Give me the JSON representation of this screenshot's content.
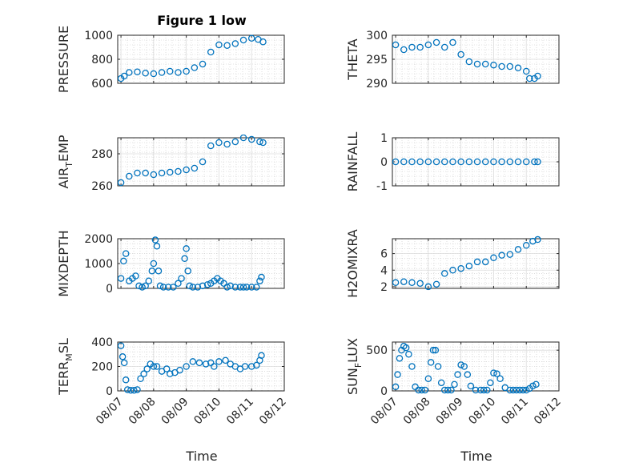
{
  "figure_title": "Figure 1 low",
  "xlabel": "Time",
  "x_ticks": [
    "08/07",
    "08/08",
    "08/09",
    "08/10",
    "08/11",
    "08/12"
  ],
  "chart_data": [
    {
      "type": "scatter",
      "id": "pressure",
      "ylabel_main": "PRESSURE",
      "ylabel_sub": "",
      "ylabel_tail": "",
      "ylim": [
        600,
        1000
      ],
      "yticks": [
        600,
        800,
        1000
      ],
      "grid": true,
      "x": [
        0.0,
        0.1,
        0.25,
        0.5,
        0.75,
        1.0,
        1.25,
        1.5,
        1.75,
        2.0,
        2.25,
        2.5,
        2.75,
        3.0,
        3.25,
        3.5,
        3.75,
        4.0,
        4.2,
        4.35
      ],
      "y": [
        640,
        660,
        690,
        695,
        685,
        680,
        690,
        700,
        690,
        700,
        730,
        760,
        860,
        920,
        915,
        930,
        960,
        975,
        965,
        945
      ]
    },
    {
      "type": "scatter",
      "id": "theta",
      "ylabel_main": "THETA",
      "ylabel_sub": "",
      "ylabel_tail": "",
      "ylim": [
        290,
        300
      ],
      "yticks": [
        290,
        295,
        300
      ],
      "grid": true,
      "x": [
        0.0,
        0.25,
        0.5,
        0.75,
        1.0,
        1.25,
        1.5,
        1.75,
        2.0,
        2.25,
        2.5,
        2.75,
        3.0,
        3.25,
        3.5,
        3.75,
        4.0,
        4.1,
        4.25,
        4.35
      ],
      "y": [
        298.0,
        297.0,
        297.5,
        297.5,
        298.0,
        298.5,
        297.5,
        298.5,
        296.0,
        294.5,
        294.0,
        294.0,
        293.8,
        293.5,
        293.5,
        293.2,
        292.5,
        291.0,
        291.0,
        291.5
      ]
    },
    {
      "type": "scatter",
      "id": "air-temp",
      "ylabel_main": "AIR",
      "ylabel_sub": "T",
      "ylabel_tail": "EMP",
      "ylim": [
        260,
        290
      ],
      "yticks": [
        260,
        280
      ],
      "grid": true,
      "x": [
        0.0,
        0.25,
        0.5,
        0.75,
        1.0,
        1.25,
        1.5,
        1.75,
        2.0,
        2.25,
        2.5,
        2.75,
        3.0,
        3.25,
        3.5,
        3.75,
        4.0,
        4.25,
        4.35
      ],
      "y": [
        262,
        266,
        268,
        268,
        267,
        268,
        268.5,
        269,
        270,
        271,
        275,
        285,
        287,
        286,
        287.5,
        290,
        289,
        287.5,
        287
      ]
    },
    {
      "type": "scatter",
      "id": "rainfall",
      "ylabel_main": "RAINFALL",
      "ylabel_sub": "",
      "ylabel_tail": "",
      "ylim": [
        -1,
        1
      ],
      "yticks": [
        -1,
        0,
        1
      ],
      "grid": true,
      "x": [
        0.0,
        0.25,
        0.5,
        0.75,
        1.0,
        1.25,
        1.5,
        1.75,
        2.0,
        2.25,
        2.5,
        2.75,
        3.0,
        3.25,
        3.5,
        3.75,
        4.0,
        4.25,
        4.35
      ],
      "y": [
        0,
        0,
        0,
        0,
        0,
        0,
        0,
        0,
        0,
        0,
        0,
        0,
        0,
        0,
        0,
        0,
        0,
        0,
        0
      ]
    },
    {
      "type": "scatter",
      "id": "mixdepth",
      "ylabel_main": "MIXDEPTH",
      "ylabel_sub": "",
      "ylabel_tail": "",
      "ylim": [
        0,
        2000
      ],
      "yticks": [
        0,
        1000,
        2000
      ],
      "grid": true,
      "x": [
        0.0,
        0.08,
        0.15,
        0.25,
        0.35,
        0.45,
        0.55,
        0.65,
        0.75,
        0.85,
        0.95,
        1.0,
        1.05,
        1.1,
        1.15,
        1.2,
        1.3,
        1.45,
        1.6,
        1.75,
        1.85,
        1.95,
        2.0,
        2.05,
        2.1,
        2.2,
        2.35,
        2.5,
        2.65,
        2.75,
        2.85,
        2.95,
        3.05,
        3.15,
        3.25,
        3.35,
        3.5,
        3.65,
        3.75,
        3.85,
        4.0,
        4.15,
        4.25,
        4.3
      ],
      "y": [
        400,
        1100,
        1400,
        300,
        400,
        500,
        100,
        50,
        100,
        300,
        700,
        1000,
        1950,
        1700,
        700,
        100,
        50,
        50,
        50,
        200,
        400,
        1200,
        1600,
        700,
        100,
        50,
        50,
        100,
        150,
        200,
        300,
        400,
        300,
        200,
        50,
        100,
        50,
        50,
        50,
        50,
        50,
        50,
        300,
        450
      ]
    },
    {
      "type": "scatter",
      "id": "h2omixra",
      "ylabel_main": "H2OMIXRA",
      "ylabel_sub": "",
      "ylabel_tail": "",
      "ylim": [
        1.8,
        7.8
      ],
      "yticks": [
        2,
        4,
        6
      ],
      "grid": true,
      "x": [
        0.0,
        0.25,
        0.5,
        0.75,
        1.0,
        1.25,
        1.5,
        1.75,
        2.0,
        2.25,
        2.5,
        2.75,
        3.0,
        3.25,
        3.5,
        3.75,
        4.0,
        4.2,
        4.35
      ],
      "y": [
        2.5,
        2.6,
        2.5,
        2.4,
        2.0,
        2.3,
        3.6,
        4.0,
        4.2,
        4.5,
        5.0,
        5.0,
        5.5,
        5.8,
        5.9,
        6.5,
        7.0,
        7.5,
        7.7
      ]
    },
    {
      "type": "scatter",
      "id": "terr-msl",
      "ylabel_main": "TERR",
      "ylabel_sub": "M",
      "ylabel_tail": "SL",
      "ylim": [
        0,
        400
      ],
      "yticks": [
        0,
        200,
        400
      ],
      "grid": true,
      "x": [
        0.0,
        0.05,
        0.1,
        0.15,
        0.2,
        0.3,
        0.4,
        0.5,
        0.6,
        0.7,
        0.8,
        0.9,
        1.0,
        1.1,
        1.25,
        1.4,
        1.5,
        1.65,
        1.8,
        2.0,
        2.2,
        2.4,
        2.6,
        2.75,
        2.85,
        3.0,
        3.2,
        3.35,
        3.5,
        3.65,
        3.8,
        4.0,
        4.15,
        4.25,
        4.3
      ],
      "y": [
        370,
        280,
        230,
        90,
        10,
        5,
        5,
        10,
        100,
        140,
        180,
        220,
        200,
        200,
        160,
        180,
        140,
        150,
        170,
        200,
        240,
        230,
        220,
        230,
        200,
        240,
        250,
        220,
        200,
        180,
        200,
        200,
        210,
        250,
        290
      ]
    },
    {
      "type": "scatter",
      "id": "sun-flux",
      "ylabel_main": "SUN",
      "ylabel_sub": "F",
      "ylabel_tail": "LUX",
      "ylim": [
        0,
        600
      ],
      "yticks": [
        0,
        500
      ],
      "grid": true,
      "x": [
        0.0,
        0.06,
        0.12,
        0.18,
        0.25,
        0.32,
        0.4,
        0.5,
        0.6,
        0.7,
        0.8,
        0.9,
        1.0,
        1.08,
        1.15,
        1.22,
        1.3,
        1.4,
        1.5,
        1.6,
        1.7,
        1.8,
        1.9,
        2.0,
        2.1,
        2.2,
        2.3,
        2.45,
        2.6,
        2.7,
        2.8,
        2.9,
        3.0,
        3.1,
        3.2,
        3.35,
        3.5,
        3.6,
        3.7,
        3.8,
        3.9,
        4.0,
        4.1,
        4.2,
        4.3
      ],
      "y": [
        50,
        200,
        400,
        500,
        550,
        530,
        450,
        300,
        50,
        10,
        10,
        10,
        150,
        350,
        500,
        500,
        300,
        100,
        10,
        10,
        10,
        80,
        200,
        320,
        300,
        200,
        60,
        10,
        10,
        10,
        10,
        100,
        220,
        210,
        150,
        40,
        10,
        10,
        10,
        10,
        10,
        10,
        30,
        60,
        80
      ]
    }
  ]
}
